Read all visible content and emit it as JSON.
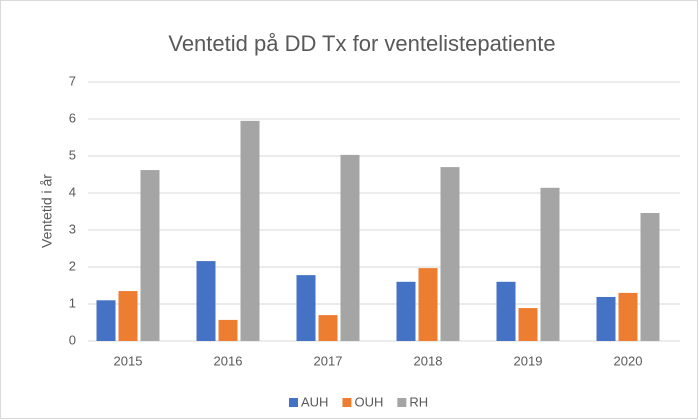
{
  "chart_data": {
    "type": "bar",
    "title": "Ventetid på DD Tx for ventelistepatiente",
    "y_label": "Ventetid i år",
    "categories": [
      "2015",
      "2016",
      "2017",
      "2018",
      "2019",
      "2020"
    ],
    "series": [
      {
        "name": "AUH",
        "color": "#4472c4",
        "values": [
          1.1,
          2.16,
          1.78,
          1.6,
          1.6,
          1.19
        ]
      },
      {
        "name": "OUH",
        "color": "#ed7d31",
        "values": [
          1.35,
          0.57,
          0.7,
          1.97,
          0.89,
          1.3
        ]
      },
      {
        "name": "RH",
        "color": "#a5a5a5",
        "values": [
          4.62,
          5.95,
          5.03,
          4.7,
          4.14,
          3.46
        ]
      }
    ],
    "ylim": [
      0,
      7
    ],
    "yticks": [
      0,
      1,
      2,
      3,
      4,
      5,
      6,
      7
    ],
    "grid": true,
    "legend": "bottom"
  }
}
